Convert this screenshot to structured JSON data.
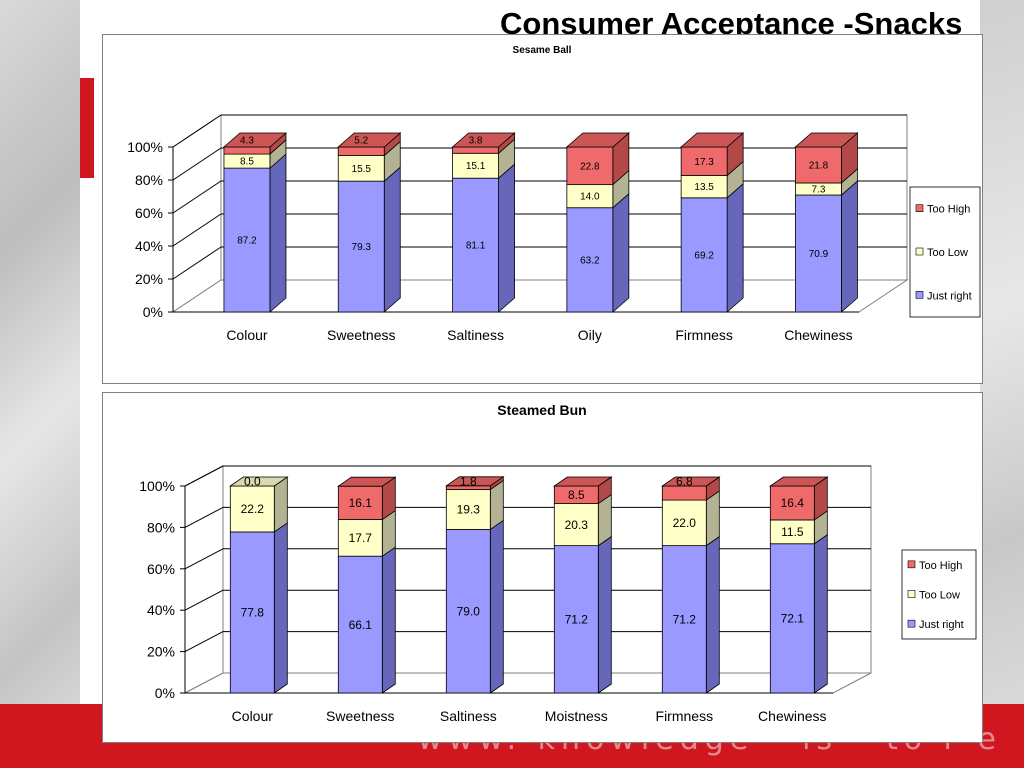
{
  "page": {
    "title": "Consumer Acceptance -Snacks",
    "footer_text": "www. knowledge - is - to r e"
  },
  "colors": {
    "too_high": "#ef6b6b",
    "too_low": "#ffffc8",
    "just_right": "#9999ff",
    "brand_red": "#d0161f"
  },
  "chart_data": [
    {
      "type": "bar",
      "stacked": true,
      "percent": true,
      "title": "Sesame Ball",
      "categories": [
        "Colour",
        "Sweetness",
        "Saltiness",
        "Oily",
        "Firmness",
        "Chewiness"
      ],
      "series": [
        {
          "name": "Just right",
          "values": [
            87.2,
            79.3,
            81.1,
            63.2,
            69.2,
            70.9
          ]
        },
        {
          "name": "Too Low",
          "values": [
            8.5,
            15.5,
            15.1,
            14.0,
            13.5,
            7.3
          ]
        },
        {
          "name": "Too High",
          "values": [
            4.3,
            5.2,
            3.8,
            22.8,
            17.3,
            21.8
          ]
        }
      ],
      "y_ticks": [
        "0%",
        "20%",
        "40%",
        "60%",
        "80%",
        "100%"
      ],
      "ylim": [
        0,
        100
      ],
      "grid": true,
      "legend_position": "right"
    },
    {
      "type": "bar",
      "stacked": true,
      "percent": true,
      "title": "Steamed Bun",
      "categories": [
        "Colour",
        "Sweetness",
        "Saltiness",
        "Moistness",
        "Firmness",
        "Chewiness"
      ],
      "series": [
        {
          "name": "Just right",
          "values": [
            77.8,
            66.1,
            79.0,
            71.2,
            71.2,
            72.1
          ]
        },
        {
          "name": "Too Low",
          "values": [
            22.2,
            17.7,
            19.3,
            20.3,
            22.0,
            11.5
          ]
        },
        {
          "name": "Too High",
          "values": [
            0.0,
            16.1,
            1.8,
            8.5,
            6.8,
            16.4
          ]
        }
      ],
      "y_ticks": [
        "0%",
        "20%",
        "40%",
        "60%",
        "80%",
        "100%"
      ],
      "ylim": [
        0,
        100
      ],
      "grid": true,
      "legend_position": "right"
    }
  ]
}
